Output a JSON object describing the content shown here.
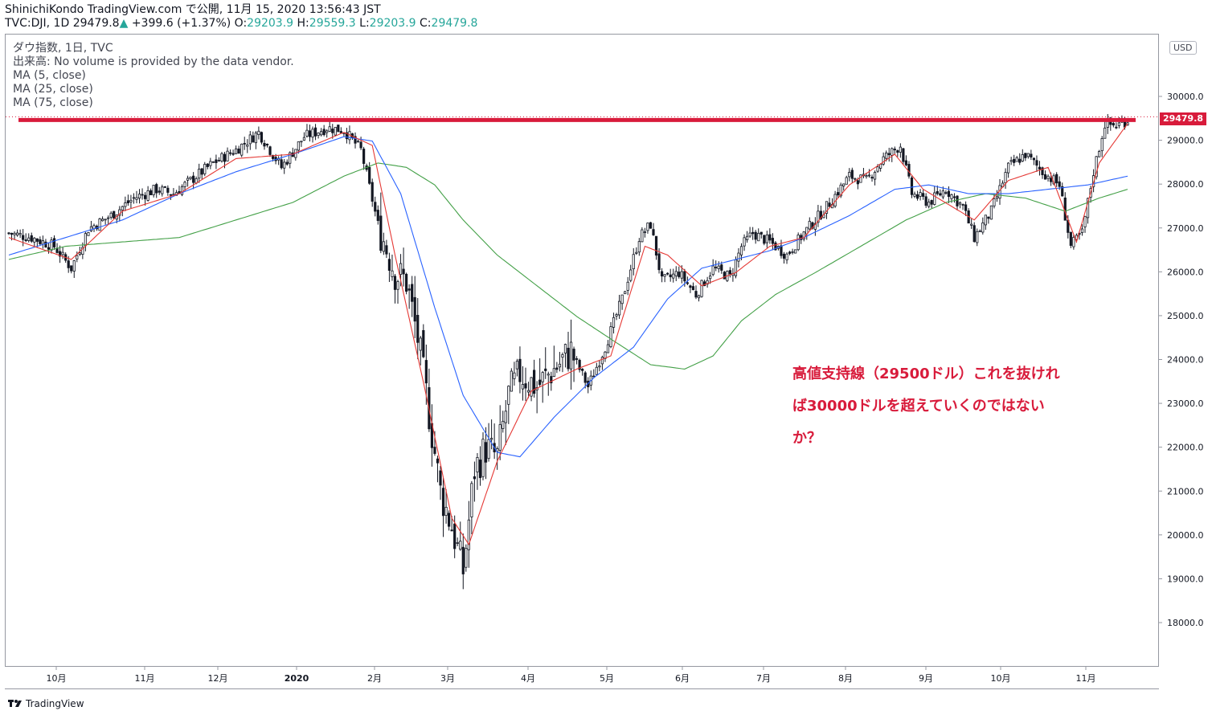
{
  "header": {
    "line1": "ShinichiKondo TradingView.com で公開, 11月 15, 2020 13:56:43 JST",
    "symbol": "TVC:DJI, 1D 29479.8",
    "arrow": "▲",
    "change": "+399.6 (+1.37%)",
    "o_label": "O:",
    "o_val": "29203.9",
    "h_label": "H:",
    "h_val": "29559.3",
    "l_label": "L:",
    "l_val": "29203.9",
    "c_label": "C:",
    "c_val": "29479.8"
  },
  "legend": {
    "title": "ダウ指数, 1日, TVC",
    "volume": "出来高: No volume is provided by the data vendor.",
    "ma5": "MA (5, close)",
    "ma25": "MA (25, close)",
    "ma75": "MA (75, close)"
  },
  "annotation": {
    "line1": "高値支持線（29500ドル）これを抜けれ",
    "line2": "ば30000ドルを超えていくのではない",
    "line3": "か？"
  },
  "price_tag": "29479.8",
  "currency": "USD",
  "footer": {
    "brand": "TradingView"
  },
  "colors": {
    "up": "#26a69a",
    "candle": "#131722",
    "ma5": "#e53935",
    "ma25": "#2962ff",
    "ma75": "#43a047",
    "support": "#d81b3b"
  },
  "chart_data": {
    "type": "candlestick",
    "x_ticks": [
      "10月",
      "11月",
      "12月",
      "2020",
      "2月",
      "3月",
      "4月",
      "5月",
      "6月",
      "7月",
      "8月",
      "9月",
      "10月",
      "11月"
    ],
    "y_ticks": [
      18000,
      19000,
      20000,
      21000,
      22000,
      23000,
      24000,
      25000,
      26000,
      27000,
      28000,
      29000,
      30000
    ],
    "ylim": [
      17000,
      31500
    ],
    "support_level": 29479.8,
    "close_path": [
      [
        0,
        26900
      ],
      [
        8,
        26800
      ],
      [
        16,
        26600
      ],
      [
        22,
        26100
      ],
      [
        28,
        27000
      ],
      [
        36,
        27300
      ],
      [
        44,
        27700
      ],
      [
        52,
        27900
      ],
      [
        58,
        27800
      ],
      [
        64,
        28100
      ],
      [
        72,
        28500
      ],
      [
        80,
        28800
      ],
      [
        88,
        29200
      ],
      [
        96,
        28400
      ],
      [
        104,
        29100
      ],
      [
        112,
        29300
      ],
      [
        118,
        29250
      ],
      [
        124,
        28800
      ],
      [
        130,
        27100
      ],
      [
        136,
        26000
      ],
      [
        140,
        25800
      ],
      [
        144,
        24500
      ],
      [
        148,
        22800
      ],
      [
        152,
        21000
      ],
      [
        156,
        20200
      ],
      [
        160,
        19200
      ],
      [
        164,
        21500
      ],
      [
        168,
        22000
      ],
      [
        172,
        21800
      ],
      [
        176,
        23200
      ],
      [
        180,
        23700
      ],
      [
        186,
        23400
      ],
      [
        192,
        23800
      ],
      [
        198,
        24200
      ],
      [
        204,
        23400
      ],
      [
        210,
        24300
      ],
      [
        216,
        25400
      ],
      [
        222,
        26800
      ],
      [
        226,
        27100
      ],
      [
        230,
        25800
      ],
      [
        236,
        26000
      ],
      [
        242,
        25500
      ],
      [
        248,
        26100
      ],
      [
        254,
        25900
      ],
      [
        258,
        26600
      ],
      [
        262,
        26900
      ],
      [
        268,
        26700
      ],
      [
        274,
        26400
      ],
      [
        280,
        26900
      ],
      [
        288,
        27500
      ],
      [
        296,
        28200
      ],
      [
        302,
        28100
      ],
      [
        308,
        28600
      ],
      [
        314,
        28900
      ],
      [
        318,
        27800
      ],
      [
        324,
        27600
      ],
      [
        330,
        27900
      ],
      [
        336,
        27500
      ],
      [
        340,
        26800
      ],
      [
        346,
        27400
      ],
      [
        352,
        28400
      ],
      [
        358,
        28700
      ],
      [
        364,
        28300
      ],
      [
        370,
        28000
      ],
      [
        374,
        26600
      ],
      [
        378,
        26900
      ],
      [
        382,
        28300
      ],
      [
        386,
        29400
      ],
      [
        390,
        29350
      ],
      [
        394,
        29480
      ]
    ],
    "ma5_path": [
      [
        0,
        26800
      ],
      [
        22,
        26300
      ],
      [
        40,
        27400
      ],
      [
        60,
        27800
      ],
      [
        80,
        28600
      ],
      [
        100,
        28700
      ],
      [
        118,
        29200
      ],
      [
        128,
        28900
      ],
      [
        136,
        26400
      ],
      [
        146,
        23500
      ],
      [
        156,
        20400
      ],
      [
        162,
        19800
      ],
      [
        172,
        21700
      ],
      [
        184,
        23300
      ],
      [
        200,
        23800
      ],
      [
        212,
        24100
      ],
      [
        224,
        26600
      ],
      [
        232,
        26400
      ],
      [
        244,
        25700
      ],
      [
        256,
        26000
      ],
      [
        268,
        26600
      ],
      [
        280,
        26800
      ],
      [
        296,
        28000
      ],
      [
        312,
        28700
      ],
      [
        322,
        27900
      ],
      [
        340,
        27200
      ],
      [
        352,
        28100
      ],
      [
        366,
        28400
      ],
      [
        376,
        26700
      ],
      [
        384,
        28500
      ],
      [
        394,
        29400
      ]
    ],
    "ma25_path": [
      [
        0,
        26400
      ],
      [
        20,
        26800
      ],
      [
        40,
        27200
      ],
      [
        60,
        27800
      ],
      [
        80,
        28300
      ],
      [
        100,
        28700
      ],
      [
        118,
        29100
      ],
      [
        128,
        29000
      ],
      [
        138,
        27800
      ],
      [
        150,
        25200
      ],
      [
        160,
        23200
      ],
      [
        172,
        21900
      ],
      [
        180,
        21800
      ],
      [
        192,
        22700
      ],
      [
        206,
        23600
      ],
      [
        220,
        24300
      ],
      [
        232,
        25400
      ],
      [
        244,
        26100
      ],
      [
        256,
        26300
      ],
      [
        268,
        26500
      ],
      [
        280,
        26800
      ],
      [
        296,
        27300
      ],
      [
        312,
        27900
      ],
      [
        324,
        28000
      ],
      [
        338,
        27800
      ],
      [
        352,
        27800
      ],
      [
        366,
        27900
      ],
      [
        380,
        28000
      ],
      [
        394,
        28200
      ]
    ],
    "ma75_path": [
      [
        0,
        26300
      ],
      [
        20,
        26600
      ],
      [
        40,
        26700
      ],
      [
        60,
        26800
      ],
      [
        80,
        27200
      ],
      [
        100,
        27600
      ],
      [
        118,
        28200
      ],
      [
        130,
        28500
      ],
      [
        140,
        28400
      ],
      [
        150,
        28000
      ],
      [
        160,
        27200
      ],
      [
        172,
        26400
      ],
      [
        186,
        25700
      ],
      [
        200,
        25000
      ],
      [
        214,
        24400
      ],
      [
        226,
        23900
      ],
      [
        238,
        23800
      ],
      [
        248,
        24100
      ],
      [
        258,
        24900
      ],
      [
        270,
        25500
      ],
      [
        284,
        26000
      ],
      [
        300,
        26600
      ],
      [
        316,
        27200
      ],
      [
        330,
        27600
      ],
      [
        344,
        27800
      ],
      [
        358,
        27700
      ],
      [
        372,
        27400
      ],
      [
        384,
        27700
      ],
      [
        394,
        27900
      ]
    ]
  }
}
